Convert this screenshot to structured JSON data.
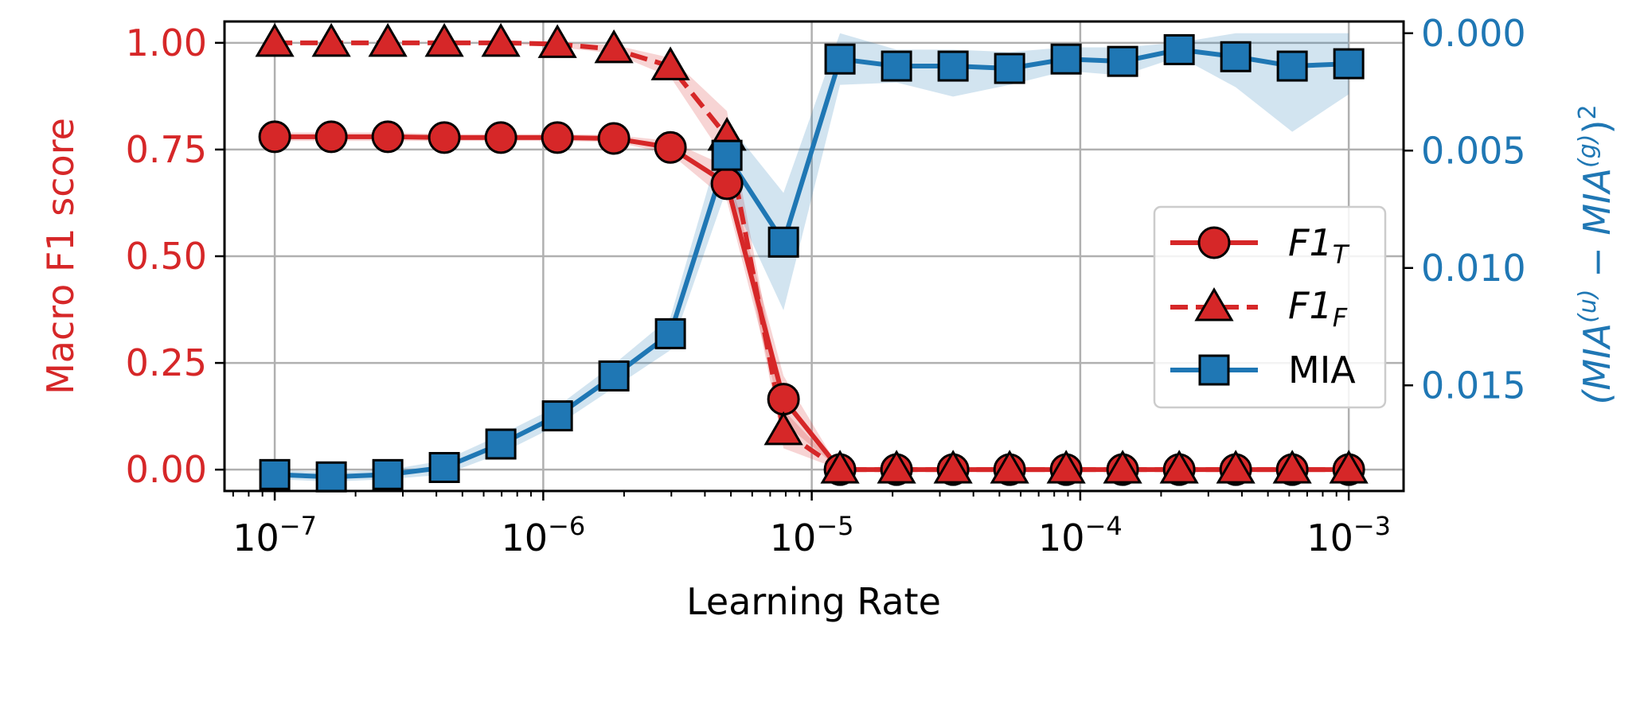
{
  "chart_data": {
    "type": "line",
    "xlabel": "Learning Rate",
    "xscale": "log",
    "xlim": [
      6.5e-08,
      0.0016
    ],
    "x_ticks": [
      {
        "value": 1e-07,
        "base": "10",
        "exp": "−7"
      },
      {
        "value": 1e-06,
        "base": "10",
        "exp": "−6"
      },
      {
        "value": 1e-05,
        "base": "10",
        "exp": "−5"
      },
      {
        "value": 0.0001,
        "base": "10",
        "exp": "−4"
      },
      {
        "value": 0.001,
        "base": "10",
        "exp": "−3"
      }
    ],
    "left_axis": {
      "label": "Macro F1 score",
      "color": "#d62728",
      "ylim": [
        -0.05,
        1.05
      ],
      "ticks": [
        {
          "value": 0.0,
          "label": "0.00"
        },
        {
          "value": 0.25,
          "label": "0.25"
        },
        {
          "value": 0.5,
          "label": "0.50"
        },
        {
          "value": 0.75,
          "label": "0.75"
        },
        {
          "value": 1.0,
          "label": "1.00"
        }
      ]
    },
    "right_axis": {
      "label_parts": [
        "(MIA",
        "(u)",
        " − MIA",
        "(g)",
        ")",
        "2"
      ],
      "color": "#1f77b4",
      "inverted": true,
      "ylim": [
        0.0195,
        -0.0005
      ],
      "ticks": [
        {
          "value": 0.0,
          "label": "0.000"
        },
        {
          "value": 0.005,
          "label": "0.005"
        },
        {
          "value": 0.01,
          "label": "0.010"
        },
        {
          "value": 0.015,
          "label": "0.015"
        }
      ]
    },
    "grid": true,
    "legend_position": "center-right",
    "x": [
      1e-07,
      1.624e-07,
      2.637e-07,
      4.281e-07,
      6.952e-07,
      1.129e-06,
      1.833e-06,
      2.976e-06,
      4.833e-06,
      7.848e-06,
      1.274e-05,
      2.069e-05,
      3.36e-05,
      5.456e-05,
      8.859e-05,
      0.0001438,
      0.0002336,
      0.0003793,
      0.0006158,
      0.001
    ],
    "series": [
      {
        "name_base": "F1",
        "name_sub": "T",
        "axis": "left",
        "color": "#d62728",
        "marker": "circle",
        "linestyle": "solid",
        "values": [
          0.78,
          0.78,
          0.78,
          0.778,
          0.778,
          0.778,
          0.776,
          0.755,
          0.67,
          0.165,
          0.0,
          0.0,
          0.0,
          0.0,
          0.0,
          0.0,
          0.0,
          0.0,
          0.0,
          0.0
        ],
        "band_lower": [
          0.77,
          0.77,
          0.77,
          0.77,
          0.77,
          0.77,
          0.768,
          0.74,
          0.63,
          0.11,
          0.0,
          0.0,
          0.0,
          0.0,
          0.0,
          0.0,
          0.0,
          0.0,
          0.0,
          0.0
        ],
        "band_upper": [
          0.79,
          0.79,
          0.79,
          0.786,
          0.786,
          0.786,
          0.784,
          0.77,
          0.71,
          0.22,
          0.0,
          0.0,
          0.0,
          0.0,
          0.0,
          0.0,
          0.0,
          0.0,
          0.0,
          0.0
        ]
      },
      {
        "name_base": "F1",
        "name_sub": "F",
        "axis": "left",
        "color": "#d62728",
        "marker": "triangle",
        "linestyle": "dashed",
        "values": [
          1.0,
          1.0,
          1.0,
          1.0,
          1.0,
          0.997,
          0.985,
          0.945,
          0.78,
          0.09,
          0.0,
          0.0,
          0.0,
          0.0,
          0.0,
          0.0,
          0.0,
          0.0,
          0.0,
          0.0
        ],
        "band_lower": [
          1.0,
          1.0,
          1.0,
          1.0,
          1.0,
          0.99,
          0.975,
          0.92,
          0.72,
          0.05,
          0.0,
          0.0,
          0.0,
          0.0,
          0.0,
          0.0,
          0.0,
          0.0,
          0.0,
          0.0
        ],
        "band_upper": [
          1.0,
          1.0,
          1.0,
          1.0,
          1.0,
          1.0,
          0.995,
          0.965,
          0.84,
          0.14,
          0.0,
          0.0,
          0.0,
          0.0,
          0.0,
          0.0,
          0.0,
          0.0,
          0.0,
          0.0
        ]
      },
      {
        "name": "MIA",
        "axis": "right",
        "color": "#1f77b4",
        "marker": "square",
        "linestyle": "solid",
        "values": [
          0.0188,
          0.0189,
          0.0188,
          0.0185,
          0.0175,
          0.0163,
          0.0146,
          0.0128,
          0.0052,
          0.0089,
          0.0011,
          0.0014,
          0.0014,
          0.0015,
          0.0011,
          0.0012,
          0.0007,
          0.001,
          0.0014,
          0.0013
        ],
        "band_lower": [
          0.0186,
          0.0187,
          0.0186,
          0.0182,
          0.0171,
          0.0159,
          0.0141,
          0.0121,
          0.0038,
          0.0068,
          0.0,
          0.0007,
          0.0007,
          0.0008,
          0.0006,
          0.0006,
          0.0004,
          0.0,
          0.0,
          0.0
        ],
        "band_upper": [
          0.019,
          0.0191,
          0.019,
          0.0188,
          0.0179,
          0.0167,
          0.0151,
          0.0135,
          0.0066,
          0.0118,
          0.0022,
          0.0021,
          0.0027,
          0.0022,
          0.0016,
          0.0018,
          0.001,
          0.0023,
          0.0042,
          0.0026
        ]
      }
    ]
  }
}
